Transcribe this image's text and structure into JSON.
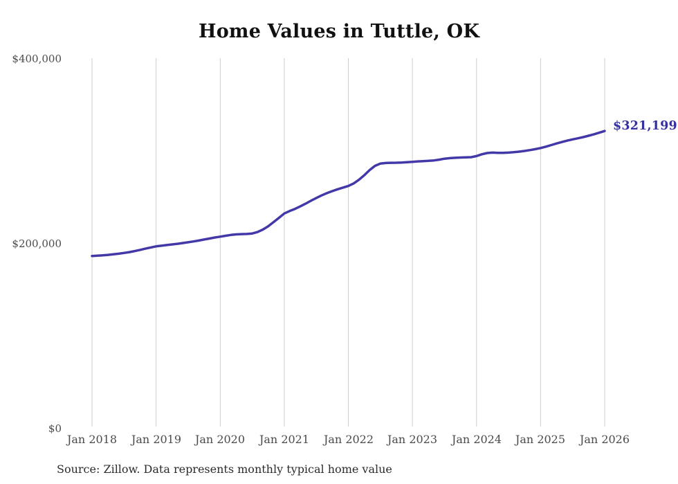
{
  "title": "Home Values in Tuttle, OK",
  "source_note": "Source: Zillow. Data represents monthly typical home value",
  "end_label": "$321,199",
  "colors": {
    "line": "#4238a8",
    "end_label": "#34309d",
    "grid": "#cdcdcd",
    "axis_text": "#4a4a4a",
    "title_text": "#111111",
    "background": "#ffffff"
  },
  "chart_data": {
    "type": "line",
    "title": "Home Values in Tuttle, OK",
    "xlabel": "",
    "ylabel": "",
    "ylim": [
      0,
      400000
    ],
    "y_tick_labels": [
      "$400,000",
      "$200,000",
      "$0"
    ],
    "x_tick_labels": [
      "Jan 2018",
      "Jan 2019",
      "Jan 2020",
      "Jan 2021",
      "Jan 2022",
      "Jan 2023",
      "Jan 2024",
      "Jan 2025",
      "Jan 2026"
    ],
    "x_start": "2018-01",
    "x_end": "2026-01",
    "interval": "monthly",
    "grid": "vertical-only",
    "legend": "none",
    "last_value": 321199,
    "last_value_label": "$321,199",
    "series": [
      {
        "name": "Typical home value",
        "values": [
          186000,
          186300,
          186700,
          187200,
          187800,
          188500,
          189300,
          190200,
          191300,
          192600,
          193900,
          195200,
          196400,
          197100,
          197800,
          198500,
          199200,
          200000,
          200800,
          201700,
          202700,
          203800,
          204900,
          206000,
          206900,
          207900,
          208800,
          209400,
          209700,
          209800,
          210300,
          211900,
          214600,
          218100,
          222600,
          227300,
          232000,
          234600,
          236900,
          239600,
          242600,
          245800,
          248800,
          251500,
          254000,
          256200,
          258200,
          260000,
          261700,
          264500,
          268500,
          273500,
          279000,
          283500,
          286000,
          286600,
          286800,
          286900,
          287100,
          287500,
          287900,
          288300,
          288600,
          288900,
          289400,
          290200,
          291200,
          291800,
          292200,
          292500,
          292700,
          292900,
          294100,
          296000,
          297400,
          297800,
          297600,
          297500,
          297800,
          298300,
          298900,
          299600,
          300500,
          301600,
          302800,
          304300,
          306000,
          307700,
          309300,
          310800,
          312100,
          313300,
          314600,
          316100,
          317700,
          319400,
          321199
        ]
      }
    ]
  }
}
